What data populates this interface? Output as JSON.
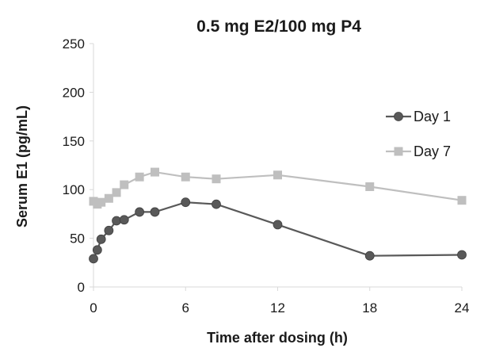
{
  "chart_data": {
    "type": "line",
    "title": "0.5 mg E2/100 mg P4",
    "xlabel": "Time after dosing (h)",
    "ylabel": "Serum E1 (pg/mL)",
    "xlim": [
      0,
      24
    ],
    "ylim": [
      0,
      250
    ],
    "xticks": [
      "0",
      "6",
      "12",
      "18",
      "24"
    ],
    "yticks": [
      "0",
      "50",
      "100",
      "150",
      "200",
      "250"
    ],
    "grid": false,
    "legend_position": "right",
    "series": [
      {
        "name": "Day 1",
        "color": "#595959",
        "marker": "circle",
        "x": [
          0,
          0.25,
          0.5,
          1,
          1.5,
          2,
          3,
          4,
          6,
          8,
          12,
          18,
          24
        ],
        "y": [
          29,
          38,
          49,
          58,
          68,
          69,
          77,
          77,
          87,
          85,
          64,
          32,
          33
        ]
      },
      {
        "name": "Day 7",
        "color": "#bfbfbf",
        "marker": "square",
        "x": [
          0,
          0.25,
          0.5,
          1,
          1.5,
          2,
          3,
          4,
          6,
          8,
          12,
          18,
          24
        ],
        "y": [
          88,
          85,
          87,
          91,
          97,
          105,
          113,
          118,
          113,
          111,
          115,
          103,
          89
        ]
      }
    ]
  }
}
